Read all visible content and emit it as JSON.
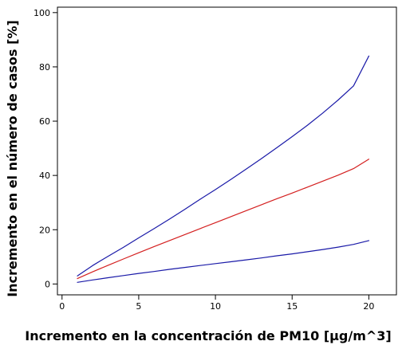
{
  "chart_data": {
    "type": "line",
    "title": "",
    "xlabel": "Incremento en la concentración de PM10 [μg/m^3]",
    "ylabel": "Incremento en el número de casos [%]",
    "xlim": [
      -0.3,
      21.8
    ],
    "ylim": [
      -4,
      102
    ],
    "x_ticks": [
      0,
      5,
      10,
      15,
      20
    ],
    "y_ticks": [
      0,
      20,
      40,
      60,
      80,
      100
    ],
    "x_tick_labels": [
      "0",
      "5",
      "10",
      "15",
      "20"
    ],
    "y_tick_labels": [
      "0",
      "20",
      "40",
      "60",
      "80",
      "100"
    ],
    "grid": false,
    "legend": "none",
    "series": [
      {
        "color": "#1a1aa8",
        "x": [
          1,
          2,
          3,
          4,
          5,
          6,
          7,
          8,
          9,
          10,
          11,
          12,
          13,
          14,
          15,
          16,
          17,
          18,
          19,
          20
        ],
        "y": [
          3.0,
          6.8,
          10.2,
          13.5,
          17.0,
          20.4,
          23.9,
          27.5,
          31.2,
          34.8,
          38.5,
          42.3,
          46.2,
          50.2,
          54.3,
          58.5,
          63.0,
          67.8,
          73.0,
          84.0
        ]
      },
      {
        "color": "#d42020",
        "x": [
          1,
          2,
          3,
          4,
          5,
          6,
          7,
          8,
          9,
          10,
          11,
          12,
          13,
          14,
          15,
          16,
          17,
          18,
          19,
          20
        ],
        "y": [
          2.0,
          4.5,
          6.9,
          9.2,
          11.5,
          13.8,
          16.0,
          18.2,
          20.4,
          22.6,
          24.8,
          27.0,
          29.2,
          31.4,
          33.5,
          35.7,
          37.9,
          40.1,
          42.5,
          46.0
        ]
      },
      {
        "color": "#1a1aa8",
        "x": [
          1,
          2,
          3,
          4,
          5,
          6,
          7,
          8,
          9,
          10,
          11,
          12,
          13,
          14,
          15,
          16,
          17,
          18,
          19,
          20
        ],
        "y": [
          0.6,
          1.5,
          2.3,
          3.1,
          3.9,
          4.6,
          5.4,
          6.1,
          6.8,
          7.5,
          8.2,
          8.9,
          9.6,
          10.4,
          11.1,
          11.9,
          12.7,
          13.6,
          14.6,
          16.0
        ]
      }
    ]
  }
}
